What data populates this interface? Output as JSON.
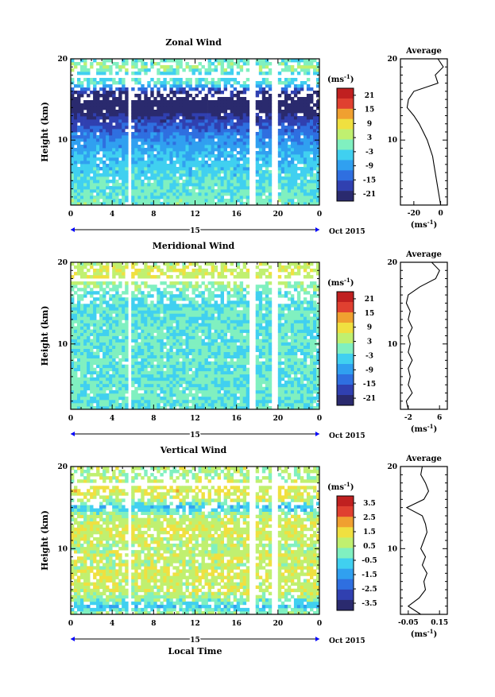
{
  "chart_data": [
    {
      "type": "heatmap",
      "title": "Zonal Wind",
      "ylabel": "Height (km)",
      "ylim": [
        2,
        20
      ],
      "yticks": [
        "10",
        "20"
      ],
      "xticks": [
        "0",
        "4",
        "8",
        "12",
        "16",
        "20",
        "0"
      ],
      "xlim": [
        0,
        24
      ],
      "day_label": "15",
      "date_label": "Oct 2015",
      "colorbar": {
        "unit": "(ms",
        "unit_exp": "-1",
        "unit_close": ")",
        "ticks": [
          "21",
          "15",
          "9",
          "3",
          "-3",
          "-9",
          "-15",
          "-21"
        ],
        "range": [
          -24,
          24
        ]
      },
      "average": {
        "title": "Average",
        "yticks": [
          "10",
          "20"
        ],
        "xticks": [
          "-20",
          "0"
        ],
        "xlim": [
          -30,
          5
        ],
        "unit": "(ms",
        "unit_exp": "-1",
        "unit_close": ")",
        "height": [
          2,
          3,
          4,
          5,
          6,
          7,
          8,
          9,
          10,
          11,
          12,
          13,
          14,
          15,
          16,
          17,
          18,
          19,
          20
        ],
        "value": [
          0,
          -1,
          -2,
          -3,
          -4,
          -5,
          -6,
          -8,
          -10,
          -13,
          -16,
          -20,
          -25,
          -24,
          -20,
          -2,
          -4,
          2,
          -2
        ]
      }
    },
    {
      "type": "heatmap",
      "title": "Meridional Wind",
      "ylabel": "Height (km)",
      "ylim": [
        2,
        20
      ],
      "yticks": [
        "10",
        "20"
      ],
      "xticks": [
        "0",
        "4",
        "8",
        "12",
        "16",
        "20",
        "0"
      ],
      "xlim": [
        0,
        24
      ],
      "day_label": "15",
      "date_label": "Oct 2015",
      "colorbar": {
        "unit": "(ms",
        "unit_exp": "-1",
        "unit_close": ")",
        "ticks": [
          "21",
          "15",
          "9",
          "3",
          "-3",
          "-9",
          "-15",
          "-21"
        ],
        "range": [
          -24,
          24
        ]
      },
      "average": {
        "title": "Average",
        "yticks": [
          "10",
          "20"
        ],
        "xticks": [
          "-2",
          "6"
        ],
        "xlim": [
          -4,
          8
        ],
        "unit": "(ms",
        "unit_exp": "-1",
        "unit_close": ")",
        "height": [
          2,
          3,
          4,
          5,
          6,
          7,
          8,
          9,
          10,
          11,
          12,
          13,
          14,
          15,
          16,
          17,
          18,
          19,
          20
        ],
        "value": [
          -2,
          -2.5,
          -1,
          -2,
          -1.5,
          -2,
          -1,
          -2,
          -1.5,
          -2,
          -1,
          -2,
          -1.5,
          -2.5,
          -2,
          1,
          5,
          6,
          4
        ]
      }
    },
    {
      "type": "heatmap",
      "title": "Vertical Wind",
      "ylabel": "Height (km)",
      "ylim": [
        2,
        20
      ],
      "yticks": [
        "10",
        "20"
      ],
      "xticks": [
        "0",
        "4",
        "8",
        "12",
        "16",
        "20",
        "0"
      ],
      "xlim": [
        0,
        24
      ],
      "day_label": "15",
      "date_label": "Oct 2015",
      "xlabel": "Local Time",
      "colorbar": {
        "unit": "(ms",
        "unit_exp": "-1",
        "unit_close": ")",
        "ticks": [
          "3.5",
          "2.5",
          "1.5",
          "0.5",
          "-0.5",
          "-1.5",
          "-2.5",
          "-3.5"
        ],
        "range": [
          -4,
          4
        ]
      },
      "average": {
        "title": "Average",
        "yticks": [
          "10",
          "20"
        ],
        "xticks": [
          "-0.05",
          "0.15"
        ],
        "xlim": [
          -0.1,
          0.2
        ],
        "unit": "(ms",
        "unit_exp": "-1",
        "unit_close": ")",
        "height": [
          2,
          3,
          4,
          5,
          6,
          7,
          8,
          9,
          10,
          11,
          12,
          13,
          14,
          15,
          16,
          17,
          18,
          19,
          20
        ],
        "value": [
          0.03,
          -0.05,
          0.02,
          0.06,
          0.05,
          0.07,
          0.04,
          0.06,
          0.03,
          0.05,
          0.07,
          0.06,
          0.04,
          -0.06,
          0.05,
          0.08,
          0.06,
          0.03,
          0.04
        ]
      }
    }
  ],
  "colors": {
    "colormap": [
      "#2a2a6e",
      "#3040b0",
      "#2f6fe0",
      "#30a0f0",
      "#40d0f0",
      "#80f0c0",
      "#c0f070",
      "#f0e040",
      "#f0a030",
      "#e04030",
      "#c02020"
    ],
    "contour": "#000000",
    "axis": "#000000",
    "marker": "#0000ff"
  }
}
